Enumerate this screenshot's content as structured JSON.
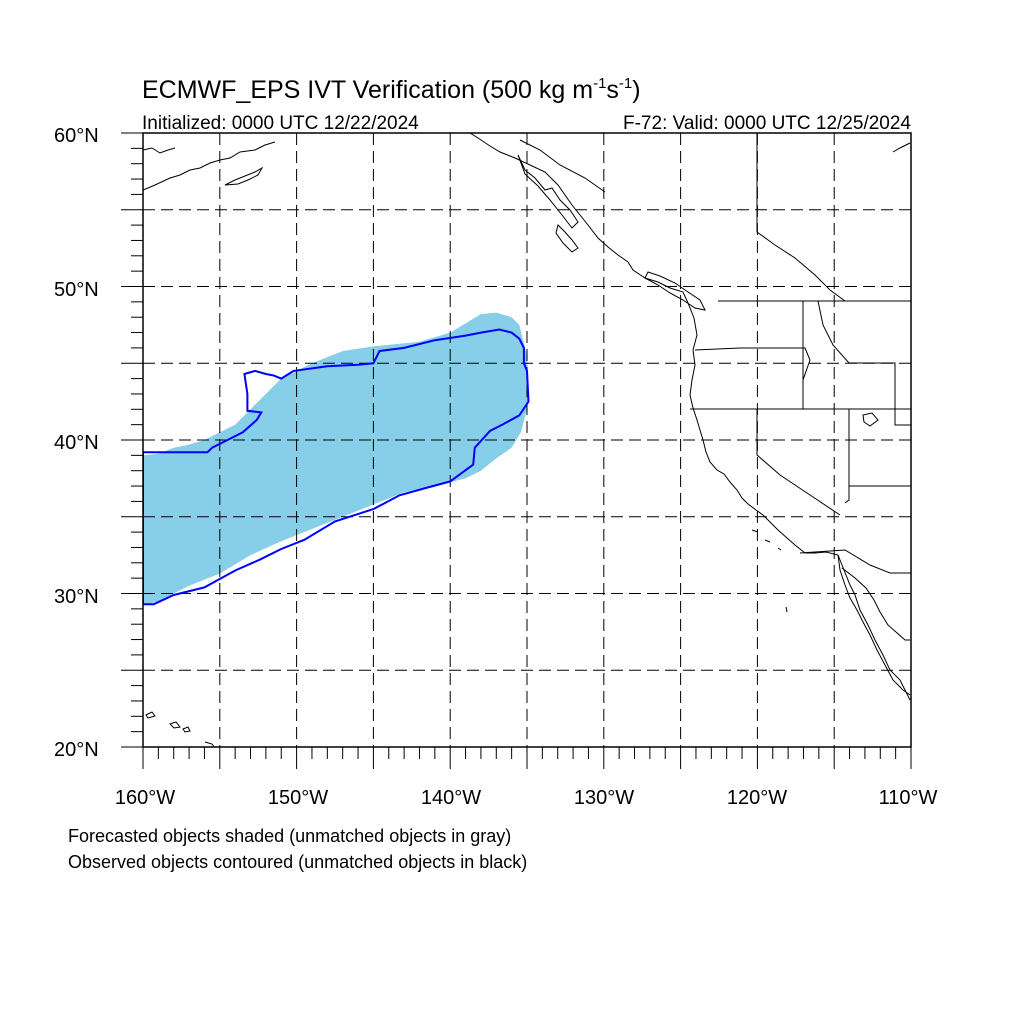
{
  "title": {
    "main_prefix": "ECMWF_EPS IVT Verification (500 kg m",
    "sup1": "-1",
    "mid": "s",
    "sup2": "-1",
    "suffix": ")"
  },
  "subtitle_left": "Initialized: 0000 UTC 12/22/2024",
  "subtitle_right": "F-72: Valid: 0000 UTC 12/25/2024",
  "axes": {
    "x_tick_labels": [
      "160°W",
      "150°W",
      "140°W",
      "130°W",
      "120°W",
      "110°W"
    ],
    "y_tick_labels": [
      "20°N",
      "30°N",
      "40°N",
      "50°N",
      "60°N"
    ],
    "lon_range": [
      -160,
      -110
    ],
    "lat_range": [
      20,
      60
    ],
    "major_lon": [
      -160,
      -150,
      -140,
      -130,
      -120,
      -110
    ],
    "major_lat": [
      20,
      30,
      40,
      50,
      60
    ],
    "grid_lon": [
      -155,
      -150,
      -145,
      -140,
      -135,
      -130,
      -125,
      -120,
      -115
    ],
    "grid_lat": [
      25,
      30,
      35,
      40,
      45,
      50,
      55
    ],
    "grid": true
  },
  "captions": [
    "Forecasted objects shaded (unmatched objects in gray)",
    "Observed objects contoured (unmatched objects in black)"
  ],
  "colors": {
    "forecast_fill": "#87CEE8",
    "observed_contour": "#0000ff",
    "coastline": "#000000",
    "grid": "#000000"
  },
  "forecast_object": [
    [
      -160,
      39.0
    ],
    [
      -159,
      39.1
    ],
    [
      -158,
      39.5
    ],
    [
      -157,
      39.7
    ],
    [
      -156,
      40.0
    ],
    [
      -155,
      40.5
    ],
    [
      -154,
      41.0
    ],
    [
      -153,
      42.0
    ],
    [
      -152,
      43.0
    ],
    [
      -151,
      44.0
    ],
    [
      -149,
      45.0
    ],
    [
      -147,
      45.8
    ],
    [
      -145,
      46.1
    ],
    [
      -142,
      46.4
    ],
    [
      -140,
      47.0
    ],
    [
      -138,
      48.2
    ],
    [
      -137,
      48.3
    ],
    [
      -136,
      48.0
    ],
    [
      -135.5,
      47.5
    ],
    [
      -135.0,
      45.5
    ],
    [
      -134.9,
      43.5
    ],
    [
      -135.0,
      42.0
    ],
    [
      -135.4,
      40.5
    ],
    [
      -136,
      39.5
    ],
    [
      -137,
      38.8
    ],
    [
      -138,
      38.0
    ],
    [
      -139,
      37.5
    ],
    [
      -141,
      37.0
    ],
    [
      -143,
      36.6
    ],
    [
      -145,
      35.8
    ],
    [
      -147,
      35.0
    ],
    [
      -149,
      34.2
    ],
    [
      -151,
      33.4
    ],
    [
      -153,
      32.5
    ],
    [
      -155,
      31.3
    ],
    [
      -157,
      30.5
    ],
    [
      -159,
      29.5
    ],
    [
      -160,
      29.2
    ]
  ],
  "observed_object": [
    [
      -160,
      39.2
    ],
    [
      -155.8,
      39.2
    ],
    [
      -155.5,
      39.5
    ],
    [
      -154.5,
      40.0
    ],
    [
      -153.5,
      40.5
    ],
    [
      -152.6,
      41.3
    ],
    [
      -152.3,
      41.8
    ],
    [
      -153.2,
      41.9
    ],
    [
      -153.2,
      43.0
    ],
    [
      -153.4,
      44.3
    ],
    [
      -152.7,
      44.5
    ],
    [
      -152.0,
      44.3
    ],
    [
      -151.5,
      44.2
    ],
    [
      -151.0,
      44.0
    ],
    [
      -150.2,
      44.5
    ],
    [
      -148.0,
      44.8
    ],
    [
      -146.0,
      44.9
    ],
    [
      -145.0,
      45.0
    ],
    [
      -144.6,
      45.8
    ],
    [
      -143.0,
      46.0
    ],
    [
      -141.0,
      46.5
    ],
    [
      -139.0,
      46.8
    ],
    [
      -138.0,
      47.0
    ],
    [
      -136.8,
      47.2
    ],
    [
      -136.0,
      47.0
    ],
    [
      -135.5,
      46.6
    ],
    [
      -135.2,
      46.0
    ],
    [
      -135.2,
      45.0
    ],
    [
      -135.0,
      44.5
    ],
    [
      -134.9,
      42.5
    ],
    [
      -135.5,
      41.6
    ],
    [
      -136.6,
      41.0
    ],
    [
      -137.4,
      40.6
    ],
    [
      -138.4,
      39.5
    ],
    [
      -138.5,
      38.4
    ],
    [
      -140.0,
      37.3
    ],
    [
      -141.5,
      36.9
    ],
    [
      -143.3,
      36.4
    ],
    [
      -145.0,
      35.5
    ],
    [
      -147.5,
      34.7
    ],
    [
      -149.5,
      33.5
    ],
    [
      -151.0,
      32.9
    ],
    [
      -152.4,
      32.2
    ],
    [
      -154.0,
      31.5
    ],
    [
      -156.0,
      30.4
    ],
    [
      -158.0,
      29.9
    ],
    [
      -159.3,
      29.3
    ],
    [
      -160,
      29.3
    ]
  ]
}
